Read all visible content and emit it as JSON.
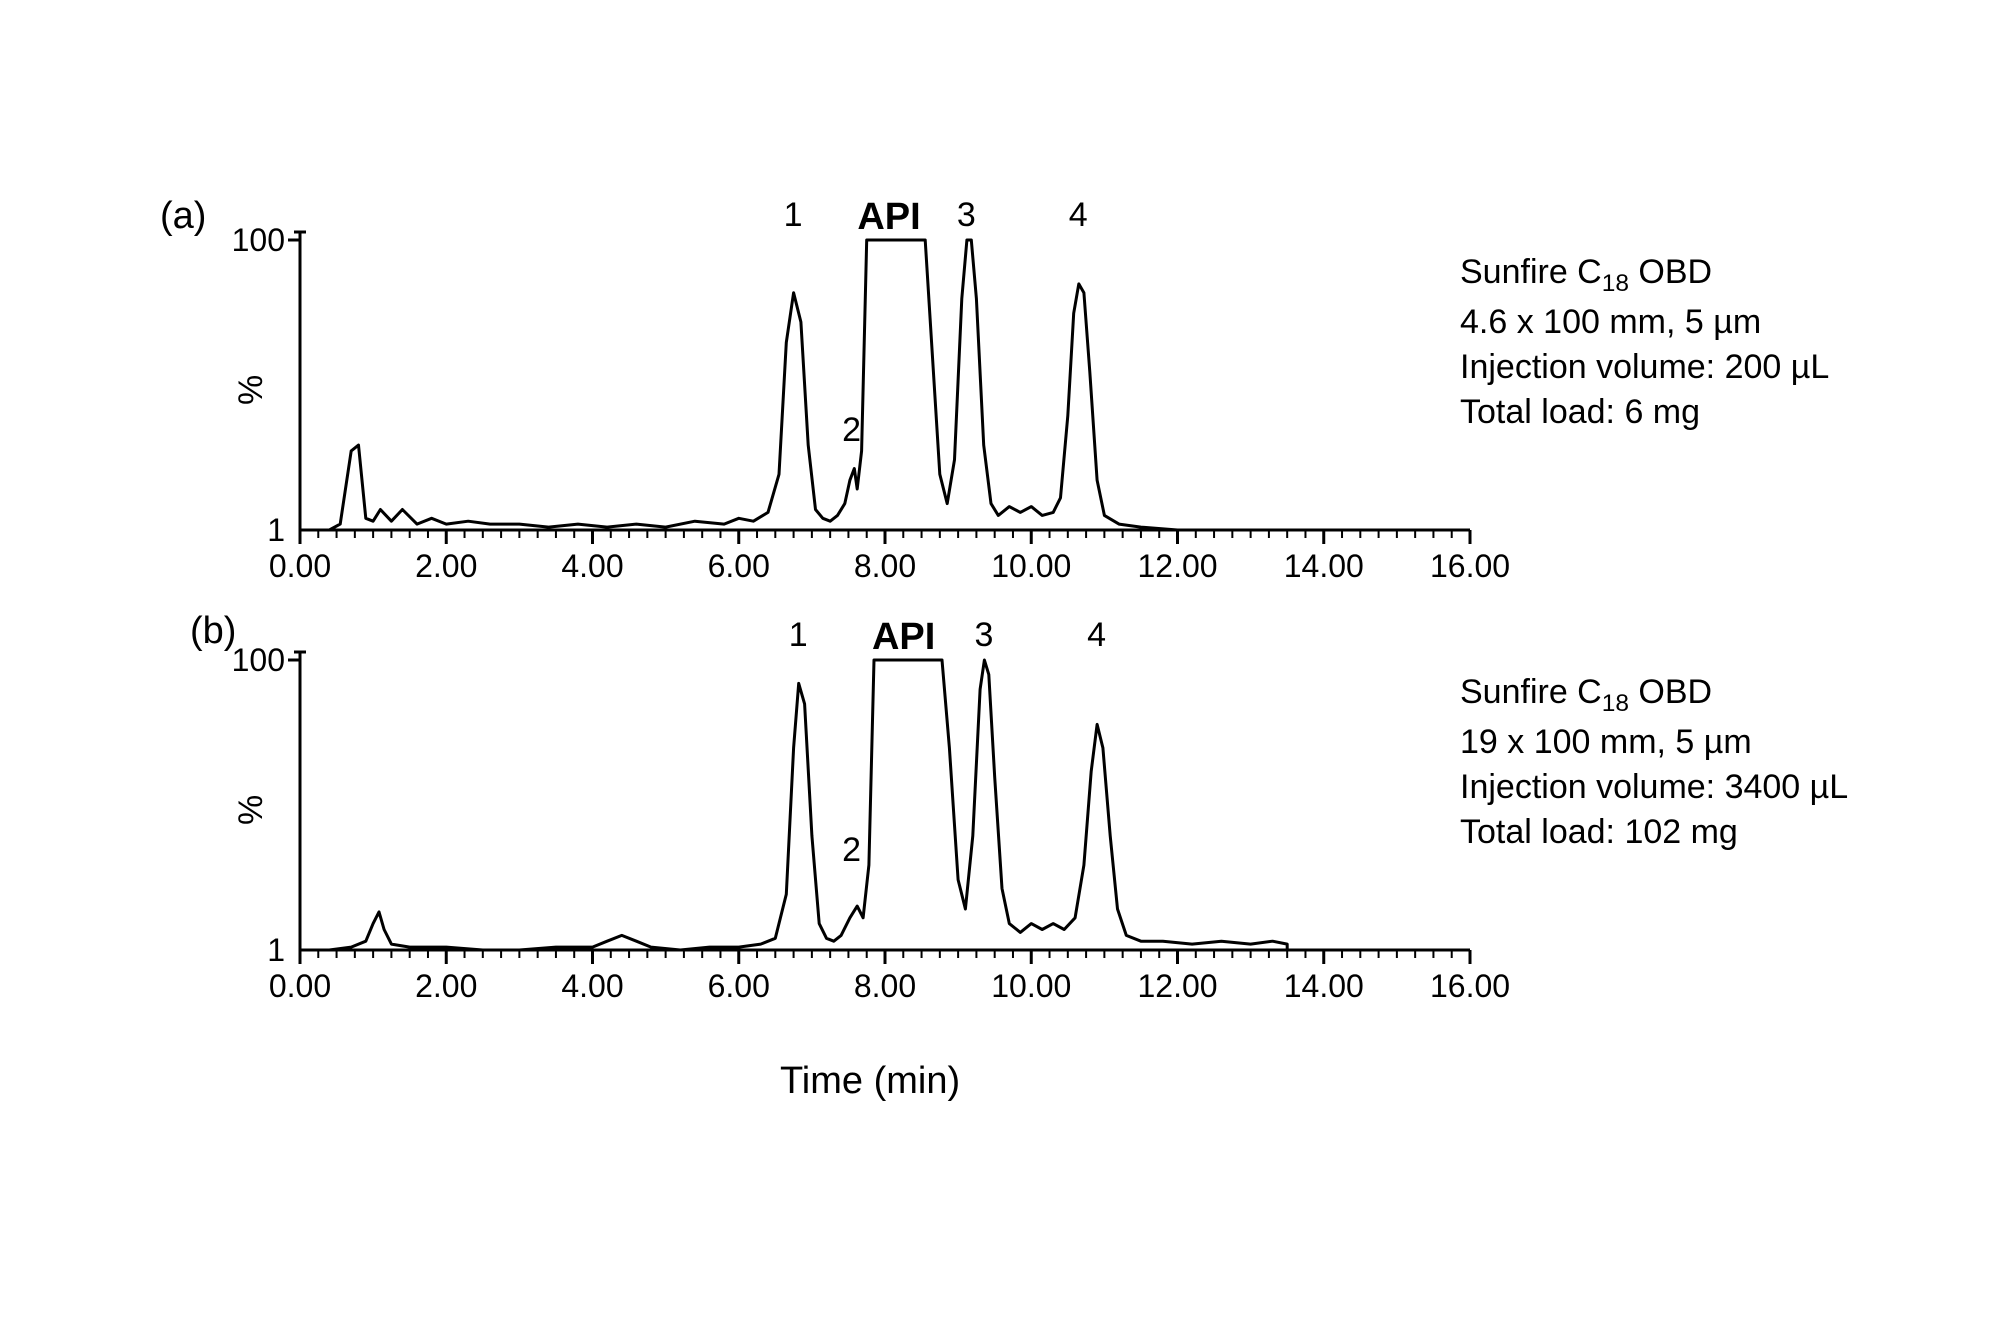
{
  "figure": {
    "background_color": "#ffffff",
    "stroke_color": "#000000",
    "tick_label_fontsize": 32,
    "label_fontsize": 34,
    "panel_label_fontsize": 38,
    "api_fontsize": 38,
    "xlabel": "Time (min)",
    "ylabel": "%",
    "line_width": 3
  },
  "axis": {
    "xlim": [
      0,
      16
    ],
    "ylim": [
      1,
      100
    ],
    "xtick_step": 2,
    "xticks": [
      "0.00",
      "2.00",
      "4.00",
      "6.00",
      "8.00",
      "10.00",
      "12.00",
      "14.00",
      "16.00"
    ],
    "yticks": [
      "1",
      "100"
    ],
    "minor_xtick_interval": 0.25
  },
  "panel_a": {
    "type": "line",
    "label": "(a)",
    "peak_labels": {
      "1": "1",
      "2": "2",
      "api": "API",
      "3": "3",
      "4": "4"
    },
    "info": {
      "column": "Sunfire C",
      "column_sub": "18",
      "column_suffix": " OBD",
      "size": "4.6 x 100 mm, 5 µm",
      "inj": "Injection volume: 200 µL",
      "load": "Total load: 6 mg"
    },
    "data": [
      [
        0.0,
        1
      ],
      [
        0.4,
        1
      ],
      [
        0.55,
        3
      ],
      [
        0.7,
        28
      ],
      [
        0.8,
        30
      ],
      [
        0.9,
        5
      ],
      [
        1.0,
        4
      ],
      [
        1.1,
        8
      ],
      [
        1.25,
        4
      ],
      [
        1.4,
        8
      ],
      [
        1.6,
        3
      ],
      [
        1.8,
        5
      ],
      [
        2.0,
        3
      ],
      [
        2.3,
        4
      ],
      [
        2.6,
        3
      ],
      [
        3.0,
        3
      ],
      [
        3.4,
        2
      ],
      [
        3.8,
        3
      ],
      [
        4.2,
        2
      ],
      [
        4.6,
        3
      ],
      [
        5.0,
        2
      ],
      [
        5.4,
        4
      ],
      [
        5.8,
        3
      ],
      [
        6.0,
        5
      ],
      [
        6.2,
        4
      ],
      [
        6.4,
        7
      ],
      [
        6.55,
        20
      ],
      [
        6.65,
        65
      ],
      [
        6.75,
        82
      ],
      [
        6.85,
        72
      ],
      [
        6.95,
        30
      ],
      [
        7.05,
        8
      ],
      [
        7.15,
        5
      ],
      [
        7.25,
        4
      ],
      [
        7.35,
        6
      ],
      [
        7.45,
        10
      ],
      [
        7.52,
        18
      ],
      [
        7.58,
        22
      ],
      [
        7.62,
        15
      ],
      [
        7.68,
        28
      ],
      [
        7.75,
        100
      ],
      [
        7.85,
        100
      ],
      [
        8.0,
        100
      ],
      [
        8.2,
        100
      ],
      [
        8.4,
        100
      ],
      [
        8.55,
        100
      ],
      [
        8.65,
        60
      ],
      [
        8.75,
        20
      ],
      [
        8.85,
        10
      ],
      [
        8.95,
        25
      ],
      [
        9.05,
        80
      ],
      [
        9.12,
        100
      ],
      [
        9.18,
        100
      ],
      [
        9.25,
        80
      ],
      [
        9.35,
        30
      ],
      [
        9.45,
        10
      ],
      [
        9.55,
        6
      ],
      [
        9.7,
        9
      ],
      [
        9.85,
        7
      ],
      [
        10.0,
        9
      ],
      [
        10.15,
        6
      ],
      [
        10.3,
        7
      ],
      [
        10.4,
        12
      ],
      [
        10.5,
        40
      ],
      [
        10.58,
        75
      ],
      [
        10.65,
        85
      ],
      [
        10.72,
        82
      ],
      [
        10.8,
        55
      ],
      [
        10.9,
        18
      ],
      [
        11.0,
        6
      ],
      [
        11.2,
        3
      ],
      [
        11.5,
        2
      ],
      [
        12.0,
        1
      ],
      [
        13.0,
        1
      ],
      [
        14.0,
        1
      ],
      [
        15.0,
        1
      ],
      [
        16.0,
        1
      ]
    ],
    "peak_pos": {
      "1": 6.75,
      "2": 7.55,
      "api": 8.1,
      "3": 9.12,
      "4": 10.65
    }
  },
  "panel_b": {
    "type": "line",
    "label": "(b)",
    "peak_labels": {
      "1": "1",
      "2": "2",
      "api": "API",
      "3": "3",
      "4": "4"
    },
    "info": {
      "column": "Sunfire C",
      "column_sub": "18",
      "column_suffix": " OBD",
      "size": "19 x 100 mm, 5 µm",
      "inj": "Injection volume: 3400 µL",
      "load": "Total load: 102 mg"
    },
    "data": [
      [
        0.0,
        1
      ],
      [
        0.4,
        1
      ],
      [
        0.7,
        2
      ],
      [
        0.9,
        4
      ],
      [
        1.0,
        10
      ],
      [
        1.08,
        14
      ],
      [
        1.15,
        8
      ],
      [
        1.25,
        3
      ],
      [
        1.5,
        2
      ],
      [
        2.0,
        2
      ],
      [
        2.5,
        1
      ],
      [
        3.0,
        1
      ],
      [
        3.5,
        2
      ],
      [
        4.0,
        2
      ],
      [
        4.2,
        4
      ],
      [
        4.4,
        6
      ],
      [
        4.6,
        4
      ],
      [
        4.8,
        2
      ],
      [
        5.2,
        1
      ],
      [
        5.6,
        2
      ],
      [
        6.0,
        2
      ],
      [
        6.3,
        3
      ],
      [
        6.5,
        5
      ],
      [
        6.65,
        20
      ],
      [
        6.75,
        70
      ],
      [
        6.82,
        92
      ],
      [
        6.9,
        85
      ],
      [
        7.0,
        40
      ],
      [
        7.1,
        10
      ],
      [
        7.2,
        5
      ],
      [
        7.3,
        4
      ],
      [
        7.4,
        6
      ],
      [
        7.52,
        12
      ],
      [
        7.62,
        16
      ],
      [
        7.7,
        12
      ],
      [
        7.78,
        30
      ],
      [
        7.85,
        100
      ],
      [
        8.0,
        100
      ],
      [
        8.2,
        100
      ],
      [
        8.4,
        100
      ],
      [
        8.6,
        100
      ],
      [
        8.78,
        100
      ],
      [
        8.88,
        70
      ],
      [
        9.0,
        25
      ],
      [
        9.1,
        15
      ],
      [
        9.2,
        40
      ],
      [
        9.3,
        90
      ],
      [
        9.36,
        100
      ],
      [
        9.42,
        95
      ],
      [
        9.5,
        60
      ],
      [
        9.6,
        22
      ],
      [
        9.7,
        10
      ],
      [
        9.85,
        7
      ],
      [
        10.0,
        10
      ],
      [
        10.15,
        8
      ],
      [
        10.3,
        10
      ],
      [
        10.45,
        8
      ],
      [
        10.6,
        12
      ],
      [
        10.72,
        30
      ],
      [
        10.82,
        62
      ],
      [
        10.9,
        78
      ],
      [
        10.98,
        70
      ],
      [
        11.08,
        40
      ],
      [
        11.18,
        15
      ],
      [
        11.3,
        6
      ],
      [
        11.5,
        4
      ],
      [
        11.8,
        4
      ],
      [
        12.2,
        3
      ],
      [
        12.6,
        4
      ],
      [
        13.0,
        3
      ],
      [
        13.3,
        4
      ],
      [
        13.5,
        3
      ],
      [
        13.5,
        1
      ],
      [
        14.0,
        1
      ],
      [
        15.0,
        1
      ],
      [
        16.0,
        1
      ]
    ],
    "peak_pos": {
      "1": 6.82,
      "2": 7.55,
      "api": 8.3,
      "3": 9.36,
      "4": 10.9
    }
  }
}
